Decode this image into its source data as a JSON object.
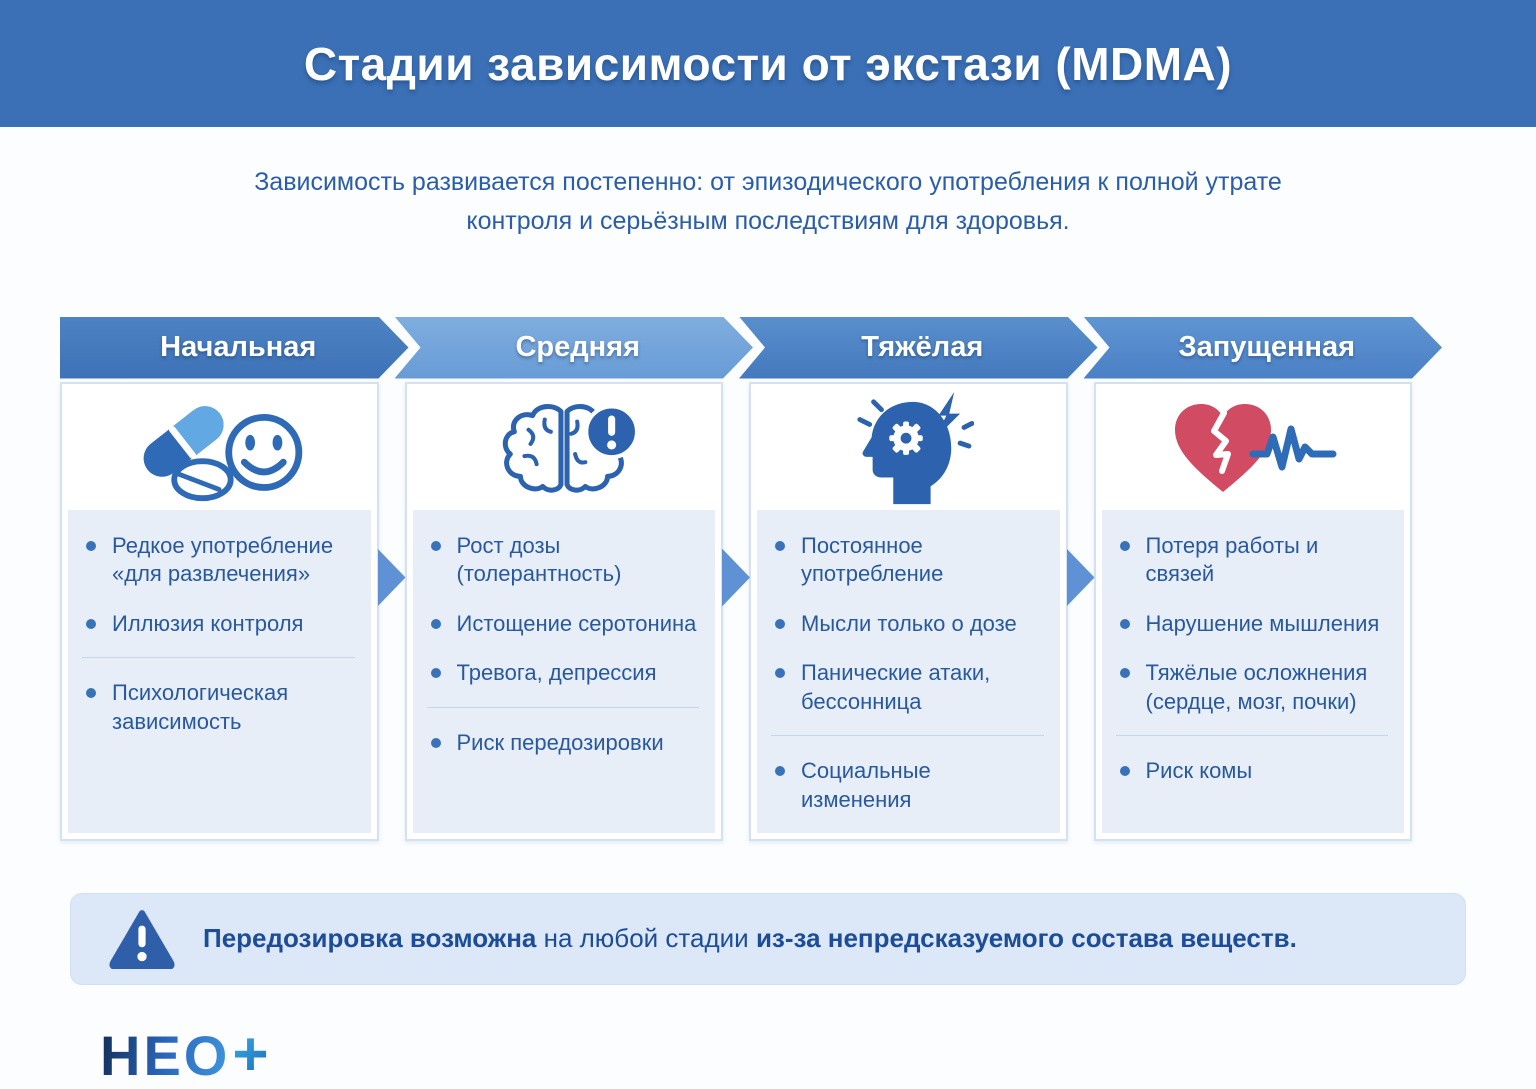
{
  "header": {
    "title": "Стадии зависимости от экстази (MDMA)",
    "bg_color": "#3b70b6"
  },
  "subtitle": "Зависимость развивается постепенно: от эпизодического употребления к полной утрате\nконтроля и серьёзным последствиям для здоровья.",
  "stages": [
    {
      "label": "Начальная",
      "arrow_color": "#3d72b6",
      "arrow_color_light": "#4d82c4",
      "icon": "pills-smiley-icon",
      "items": [
        {
          "text": "Редкое употребление «для развлечения»"
        },
        {
          "text": "Иллюзия контроля",
          "divider_after": true
        },
        {
          "text": "Психологическая зависимость"
        }
      ]
    },
    {
      "label": "Средняя",
      "arrow_color": "#689bd6",
      "arrow_color_light": "#7fadde",
      "icon": "brain-alert-icon",
      "items": [
        {
          "text": "Рост дозы (толерантность)"
        },
        {
          "text": "Истощение серотонина"
        },
        {
          "text": "Тревога, депрессия",
          "divider_after": true
        },
        {
          "text": "Риск передозировки"
        }
      ]
    },
    {
      "label": "Тяжёлая",
      "arrow_color": "#4379bd",
      "arrow_color_light": "#5a8fcd",
      "icon": "head-stress-icon",
      "items": [
        {
          "text": "Постоянное употребление"
        },
        {
          "text": "Мысли только о дозе"
        },
        {
          "text": "Панические атаки, бессонница",
          "divider_after": true
        },
        {
          "text": "Социальные изменения"
        }
      ]
    },
    {
      "label": "Запущенная",
      "arrow_color": "#4a80c5",
      "arrow_color_light": "#6095d3",
      "icon": "broken-heart-ekg-icon",
      "items": [
        {
          "text": "Потеря работы и связей"
        },
        {
          "text": "Нарушение мышления"
        },
        {
          "text": "Тяжёлые осложнения (сердце, мозг, почки)",
          "divider_after": true
        },
        {
          "text": "Риск комы"
        }
      ]
    }
  ],
  "warning": {
    "segments": [
      {
        "text": "Передозировка возможна",
        "bold": true
      },
      {
        "text": " на любой стадии ",
        "bold": false
      },
      {
        "text": "из-за непредсказуемого состава веществ.",
        "bold": true
      }
    ]
  },
  "logo": {
    "text": "НЕО",
    "plus": "+"
  },
  "colors": {
    "header_bg": "#3b70b6",
    "bullet_text": "#28599f",
    "panel_bg": "#e8eef7",
    "mini_arrow": "#5e92d4",
    "warning_bg": "#dce8f7",
    "warning_icon": "#2f5fa8",
    "heart_red": "#d14b63",
    "icon_blue": "#2d63ae"
  }
}
